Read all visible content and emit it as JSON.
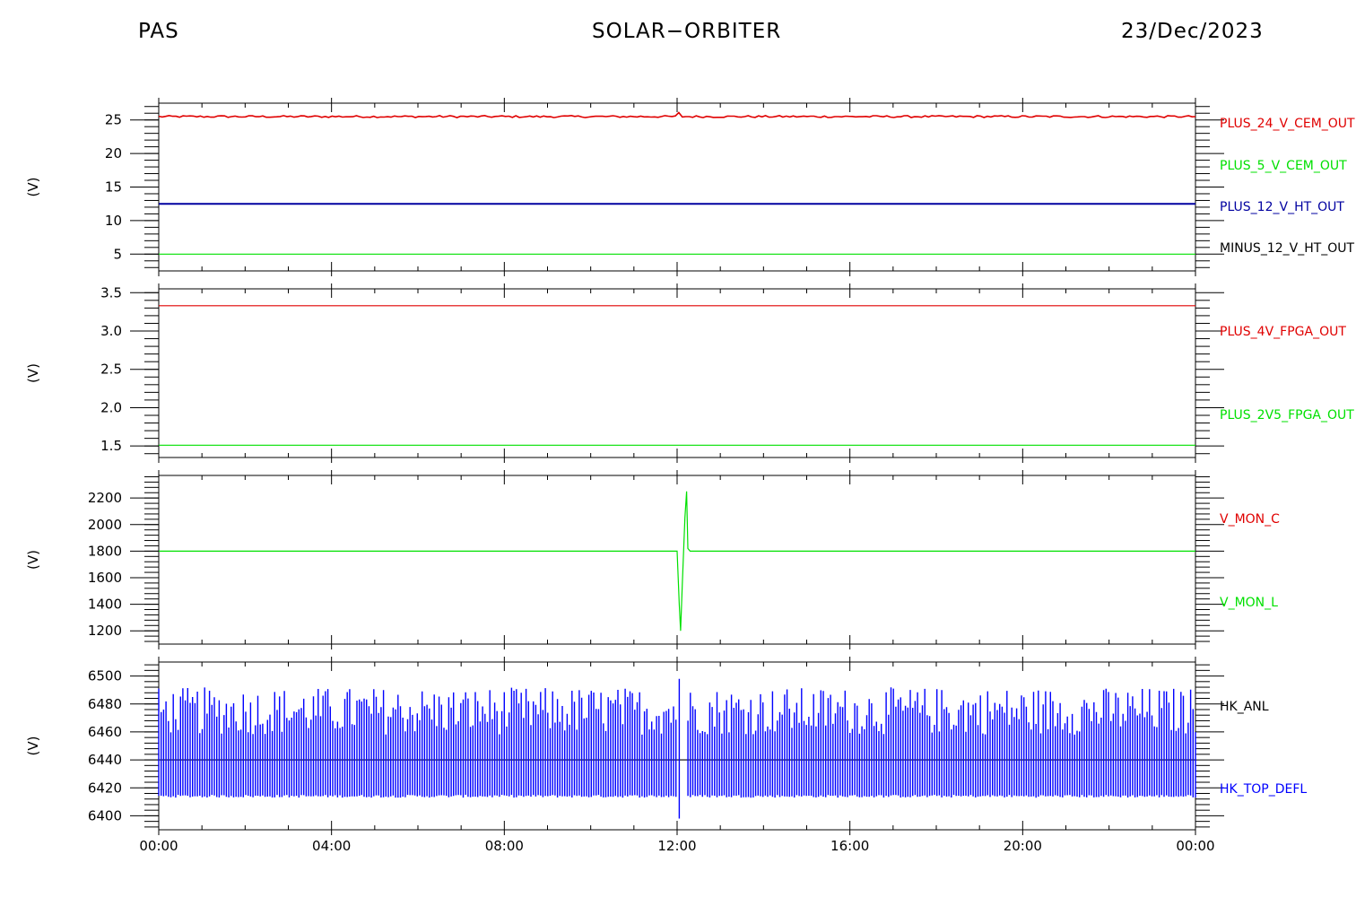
{
  "header": {
    "left": "PAS",
    "center": "SOLAR−ORBITER",
    "right": "23/Dec/2023"
  },
  "x_axis": {
    "ticks": [
      "00:00",
      "04:00",
      "08:00",
      "12:00",
      "16:00",
      "20:00",
      "00:00"
    ],
    "range_hours": [
      0,
      24
    ]
  },
  "chart_data": [
    {
      "type": "line",
      "ylabel": "(V)",
      "ylim": [
        2.5,
        27.5
      ],
      "yticks": [
        5,
        10,
        15,
        20,
        25
      ],
      "series": [
        {
          "name": "PLUS_24_V_CEM_OUT",
          "color": "#e00000",
          "level": 25.5,
          "note": "noise"
        },
        {
          "name": "PLUS_5_V_CEM_OUT",
          "color": "#00e000",
          "level": 5.0
        },
        {
          "name": "PLUS_12_V_HT_OUT",
          "color": "#0000a0",
          "level": 12.5
        },
        {
          "name": "MINUS_12_V_HT_OUT",
          "color": "#000000"
        }
      ]
    },
    {
      "type": "line",
      "ylabel": "(V)",
      "ylim": [
        1.35,
        3.55
      ],
      "yticks": [
        1.5,
        2.0,
        2.5,
        3.0,
        3.5
      ],
      "ytick_labels": [
        "1.5",
        "2.0",
        "2.5",
        "3.0",
        "3.5"
      ],
      "series": [
        {
          "name": "PLUS_4V_FPGA_OUT",
          "color": "#e00000",
          "level": 3.33
        },
        {
          "name": "PLUS_2V5_FPGA_OUT",
          "color": "#00e000",
          "level": 1.51
        }
      ]
    },
    {
      "type": "line",
      "ylabel": "(V)",
      "ylim": [
        1100,
        2370
      ],
      "yticks": [
        1200,
        1400,
        1600,
        1800,
        2000,
        2200
      ],
      "series": [
        {
          "name": "V_MON_C",
          "color": "#e00000"
        },
        {
          "name": "V_MON_L",
          "color": "#00e000",
          "level": 1800,
          "spike": [
            [
              12.0,
              1800
            ],
            [
              12.05,
              1400
            ],
            [
              12.08,
              1200
            ],
            [
              12.12,
              1550
            ],
            [
              12.18,
              2050
            ],
            [
              12.22,
              2250
            ],
            [
              12.25,
              1820
            ],
            [
              12.3,
              1800
            ]
          ]
        }
      ]
    },
    {
      "type": "line",
      "ylabel": "(V)",
      "ylim": [
        6390,
        6510
      ],
      "yticks": [
        6400,
        6420,
        6440,
        6460,
        6480,
        6500
      ],
      "series": [
        {
          "name": "HK_ANL",
          "color": "#000000",
          "level": 6440
        },
        {
          "name": "HK_TOP_DEFL",
          "color": "#0000ff",
          "low": 6413,
          "high_range": [
            6458,
            6492
          ],
          "oscillating": true
        }
      ]
    }
  ]
}
